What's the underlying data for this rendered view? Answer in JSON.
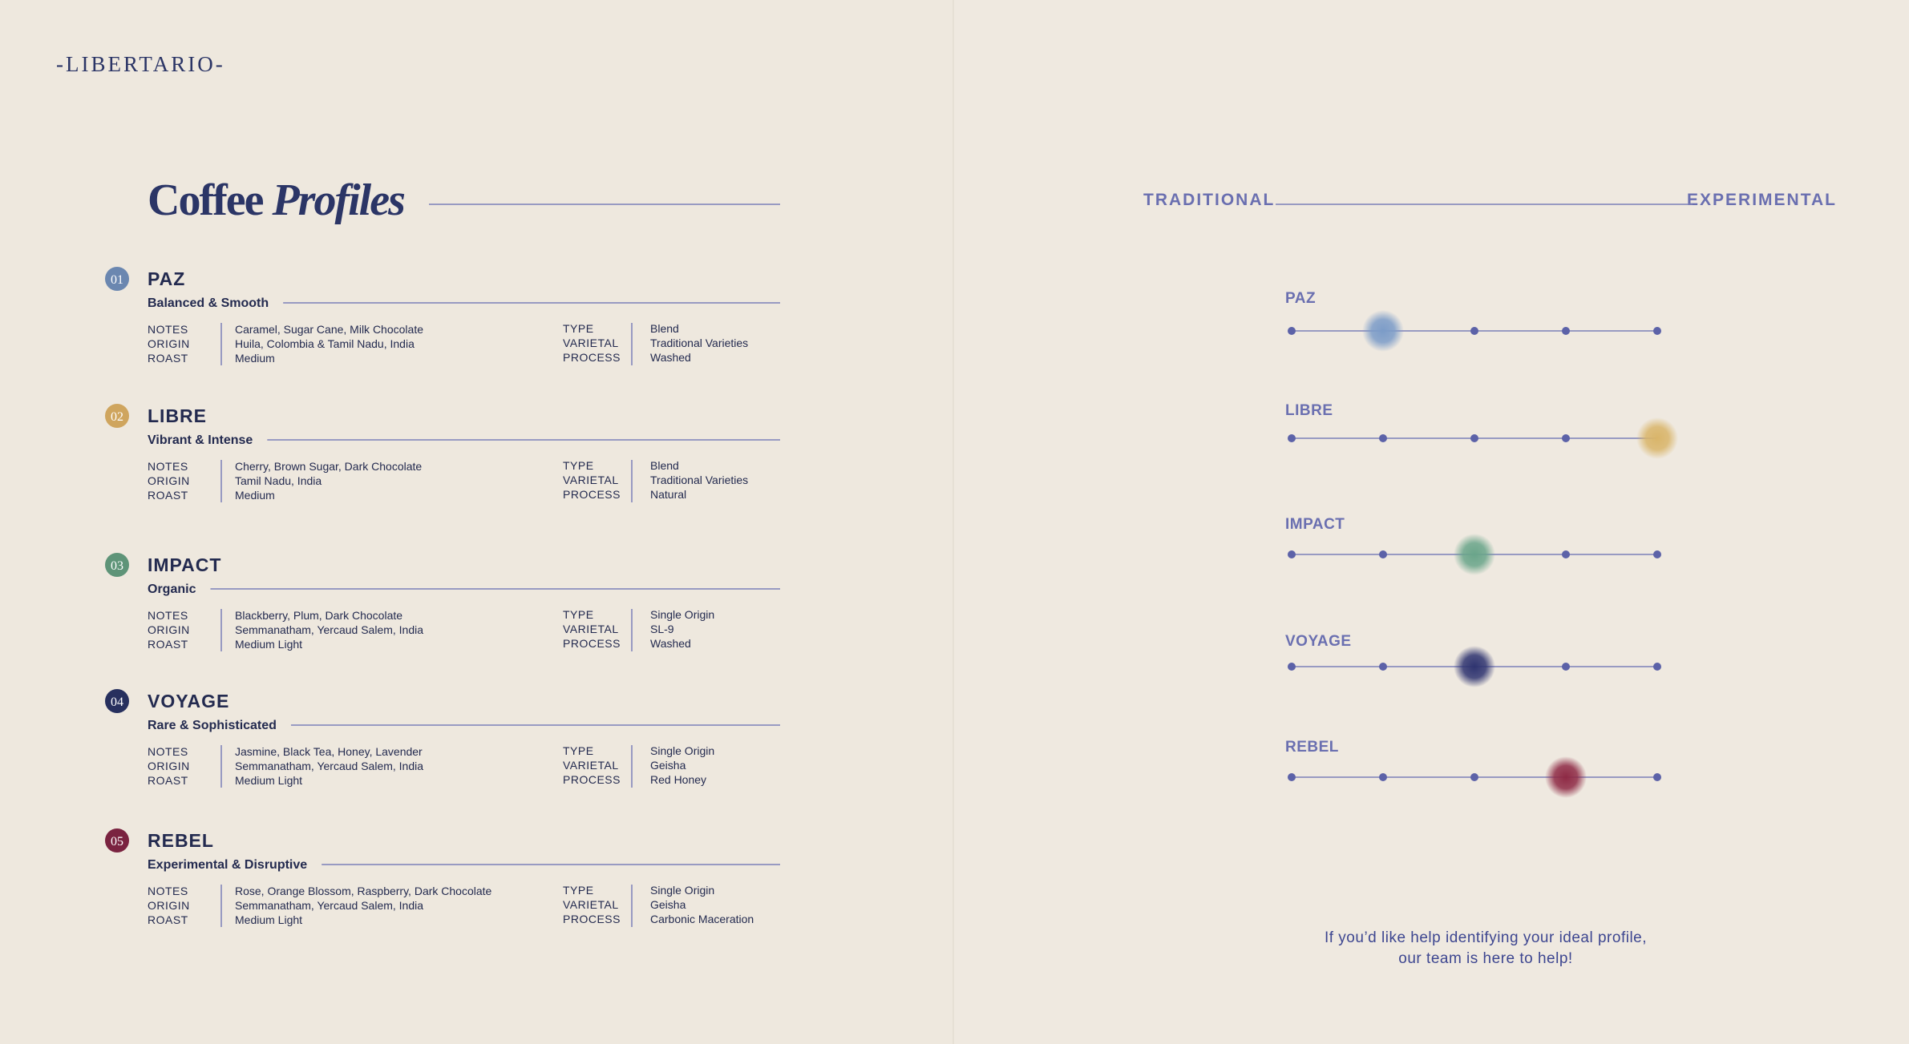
{
  "brand": "-LIBERTARIO-",
  "title": {
    "main": "Coffee",
    "italic": "Profiles"
  },
  "profiles": [
    {
      "number": "01",
      "name": "PAZ",
      "tagline": "Balanced & Smooth",
      "color": "#6b87b0",
      "details": [
        [
          "NOTES",
          "Caramel, Sugar Cane, Milk Chocolate"
        ],
        [
          "ORIGIN",
          "Huila, Colombia & Tamil Nadu, India"
        ],
        [
          "ROAST",
          "Medium"
        ]
      ],
      "specs": [
        [
          "TYPE",
          "Blend"
        ],
        [
          "VARIETAL",
          "Traditional Varieties"
        ],
        [
          "PROCESS",
          "Washed"
        ]
      ]
    },
    {
      "number": "02",
      "name": "LIBRE",
      "tagline": "Vibrant & Intense",
      "color": "#cfa55e",
      "details": [
        [
          "NOTES",
          "Cherry, Brown Sugar, Dark Chocolate"
        ],
        [
          "ORIGIN",
          "Tamil Nadu, India"
        ],
        [
          "ROAST",
          "Medium"
        ]
      ],
      "specs": [
        [
          "TYPE",
          "Blend"
        ],
        [
          "VARIETAL",
          "Traditional Varieties"
        ],
        [
          "PROCESS",
          "Natural"
        ]
      ]
    },
    {
      "number": "03",
      "name": "IMPACT",
      "tagline": "Organic",
      "color": "#5e9478",
      "details": [
        [
          "NOTES",
          "Blackberry, Plum, Dark Chocolate"
        ],
        [
          "ORIGIN",
          "Semmanatham, Yercaud Salem, India"
        ],
        [
          "ROAST",
          "Medium Light"
        ]
      ],
      "specs": [
        [
          "TYPE",
          "Single Origin"
        ],
        [
          "VARIETAL",
          "SL-9"
        ],
        [
          "PROCESS",
          "Washed"
        ]
      ]
    },
    {
      "number": "04",
      "name": "VOYAGE",
      "tagline": "Rare & Sophisticated",
      "color": "#27305e",
      "details": [
        [
          "NOTES",
          "Jasmine, Black Tea, Honey, Lavender"
        ],
        [
          "ORIGIN",
          "Semmanatham, Yercaud Salem, India"
        ],
        [
          "ROAST",
          "Medium Light"
        ]
      ],
      "specs": [
        [
          "TYPE",
          "Single Origin"
        ],
        [
          "VARIETAL",
          "Geisha"
        ],
        [
          "PROCESS",
          "Red Honey"
        ]
      ]
    },
    {
      "number": "05",
      "name": "REBEL",
      "tagline": "Experimental & Disruptive",
      "color": "#7a2340",
      "details": [
        [
          "NOTES",
          "Rose, Orange Blossom, Raspberry, Dark Chocolate"
        ],
        [
          "ORIGIN",
          "Semmanatham, Yercaud Salem, India"
        ],
        [
          "ROAST",
          "Medium Light"
        ]
      ],
      "specs": [
        [
          "TYPE",
          "Single Origin"
        ],
        [
          "VARIETAL",
          "Geisha"
        ],
        [
          "PROCESS",
          "Carbonic Maceration"
        ]
      ]
    }
  ],
  "spectrum": {
    "left": "TRADITIONAL",
    "right": "EXPERIMENTAL",
    "items": [
      {
        "name": "PAZ",
        "position": 2,
        "color": "#7c9cc8"
      },
      {
        "name": "LIBRE",
        "position": 5,
        "color": "#d9b56a"
      },
      {
        "name": "IMPACT",
        "position": 3,
        "color": "#6aa58a"
      },
      {
        "name": "VOYAGE",
        "position": 3,
        "color": "#2f3470"
      },
      {
        "name": "REBEL",
        "position": 4,
        "color": "#8e2a45"
      }
    ]
  },
  "help": [
    "If you’d like help identifying your ideal profile,",
    "our team is here to help!"
  ]
}
